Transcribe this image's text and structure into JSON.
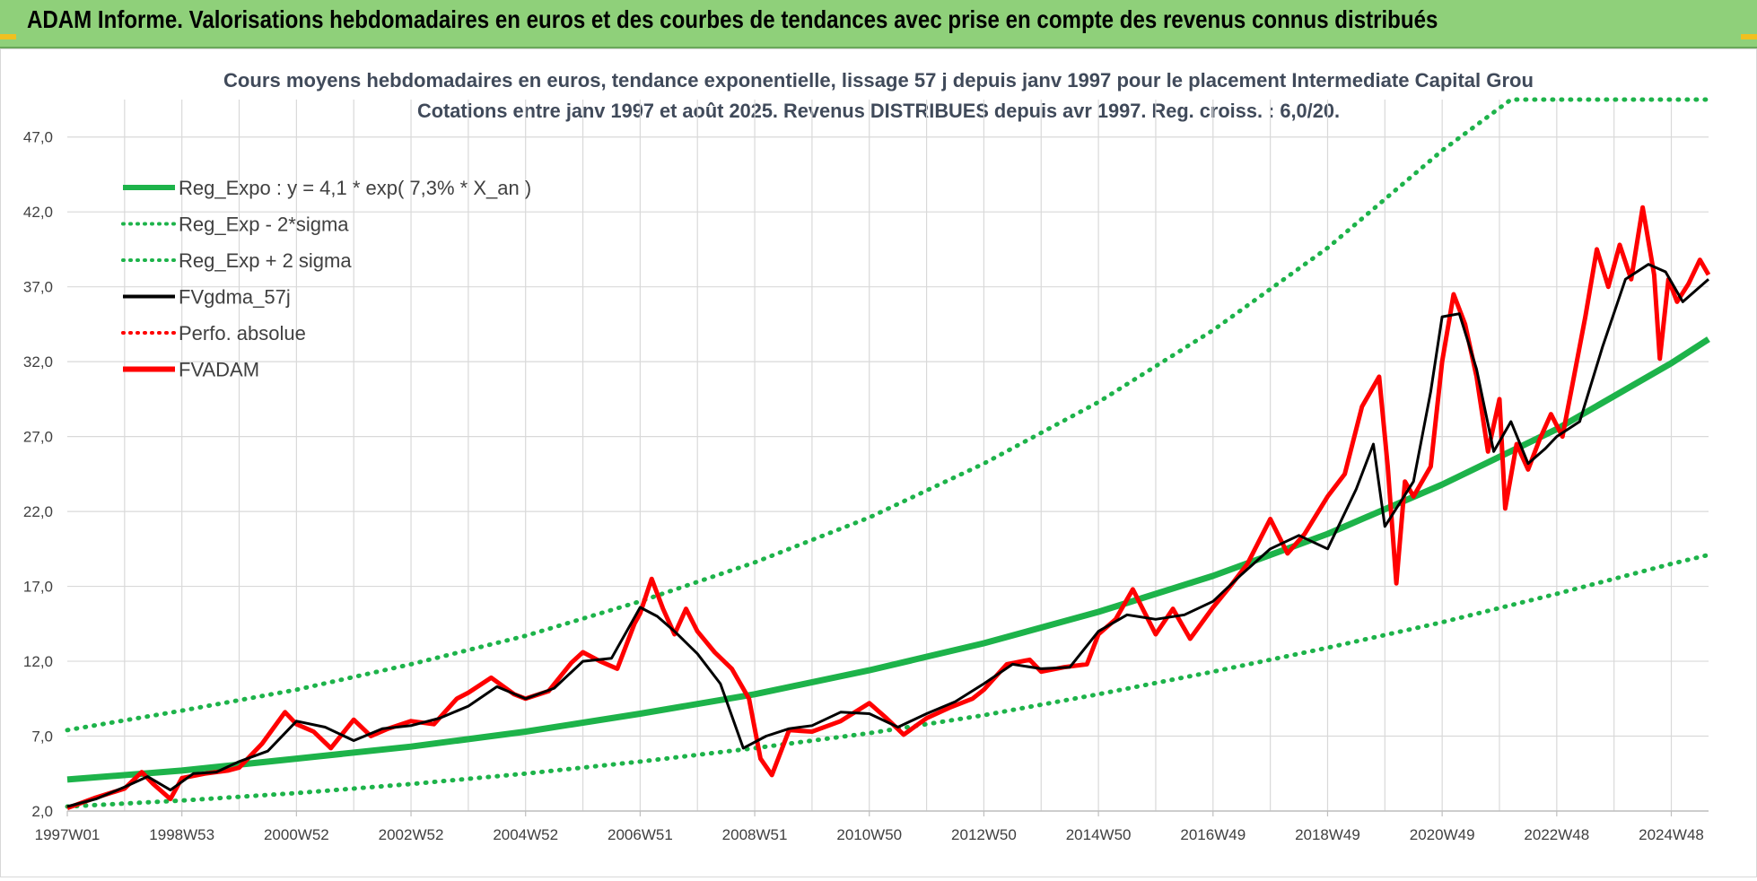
{
  "banner": {
    "title": "ADAM Informe. Valorisations hebdomadaires en euros et des courbes de tendances avec prise en compte des revenus connus distribués"
  },
  "colors": {
    "banner_bg": "#8fd07a",
    "reg_expo": "#1db34a",
    "sigma_bands": "#1db34a",
    "fvgdma": "#000000",
    "fvadam": "#ff0000",
    "perfo_absolue": "#ff0000",
    "grid": "#d9d9d9"
  },
  "chart_data": {
    "type": "line",
    "title": "Cours moyens hebdomadaires en euros, tendance exponentielle, lissage 57 j depuis janv 1997 pour le placement Intermediate Capital Grou",
    "subtitle": "Cotations entre janv 1997 et août 2025. Revenus DISTRIBUES depuis avr 1997. Reg. croiss. : 6,0/20.",
    "xlabel": "",
    "ylabel": "",
    "x_range": [
      1997.0,
      2025.65
    ],
    "ylim": [
      2.0,
      49.5
    ],
    "y_ticks": [
      "2,0",
      "7,0",
      "12,0",
      "17,0",
      "22,0",
      "27,0",
      "32,0",
      "37,0",
      "42,0",
      "47,0"
    ],
    "y_tick_values": [
      2,
      7,
      12,
      17,
      22,
      27,
      32,
      37,
      42,
      47
    ],
    "x_ticks": [
      "1997W01",
      "1998W53",
      "2000W52",
      "2002W52",
      "2004W52",
      "2006W51",
      "2008W51",
      "2010W50",
      "2012W50",
      "2014W50",
      "2016W49",
      "2018W49",
      "2020W49",
      "2022W48",
      "2024W48"
    ],
    "x_tick_values": [
      1997.0,
      1999.0,
      2001.0,
      2003.0,
      2005.0,
      2007.0,
      2009.0,
      2011.0,
      2013.0,
      2015.0,
      2017.0,
      2019.0,
      2021.0,
      2023.0,
      2025.0
    ],
    "grid": true,
    "legend_position": "top-left",
    "legend": [
      {
        "label": "Reg_Expo : y = 4,1 * exp( 7,3% *  X_an )",
        "style": "solid-thick",
        "color": "#1db34a"
      },
      {
        "label": "Reg_Exp - 2*sigma",
        "style": "dotted",
        "color": "#1db34a"
      },
      {
        "label": "Reg_Exp + 2 sigma",
        "style": "dotted",
        "color": "#1db34a"
      },
      {
        "label": "FVgdma_57j",
        "style": "solid-thin",
        "color": "#000000"
      },
      {
        "label": "Perfo. absolue",
        "style": "dotted",
        "color": "#ff0000"
      },
      {
        "label": "FVADAM",
        "style": "solid-thick",
        "color": "#ff0000"
      }
    ],
    "series": [
      {
        "name": "Reg_Expo : y = 4,1 * exp( 7,3% *  X_an )",
        "x": [
          1997.0,
          1999.0,
          2001.0,
          2003.0,
          2005.0,
          2007.0,
          2009.0,
          2011.0,
          2013.0,
          2015.0,
          2017.0,
          2019.0,
          2021.0,
          2023.0,
          2025.0,
          2025.65
        ],
        "y": [
          4.1,
          4.7,
          5.5,
          6.3,
          7.3,
          8.5,
          9.8,
          11.4,
          13.2,
          15.3,
          17.7,
          20.5,
          23.8,
          27.5,
          31.9,
          33.5
        ]
      },
      {
        "name": "Reg_Exp - 2*sigma",
        "x": [
          1997.0,
          1999.0,
          2001.0,
          2003.0,
          2005.0,
          2007.0,
          2009.0,
          2011.0,
          2013.0,
          2015.0,
          2017.0,
          2019.0,
          2021.0,
          2023.0,
          2025.0,
          2025.65
        ],
        "y": [
          2.3,
          2.7,
          3.2,
          3.8,
          4.5,
          5.3,
          6.2,
          7.2,
          8.4,
          9.8,
          11.3,
          12.9,
          14.6,
          16.5,
          18.5,
          19.1
        ]
      },
      {
        "name": "Reg_Exp + 2 sigma",
        "x": [
          1997.0,
          1999.0,
          2001.0,
          2003.0,
          2005.0,
          2007.0,
          2009.0,
          2011.0,
          2013.0,
          2015.0,
          2017.0,
          2019.0,
          2021.0,
          2022.2,
          2022.3,
          2025.65
        ],
        "y": [
          7.4,
          8.7,
          10.1,
          11.8,
          13.7,
          16.0,
          18.6,
          21.6,
          25.2,
          29.3,
          34.1,
          39.6,
          46.1,
          49.5,
          49.5,
          49.5
        ]
      },
      {
        "name": "FVgdma_57j",
        "x": [
          1997.0,
          1997.5,
          1998.0,
          1998.4,
          1998.8,
          1999.2,
          1999.6,
          2000.0,
          2000.5,
          2001.0,
          2001.5,
          2002.0,
          2002.5,
          2003.0,
          2003.5,
          2004.0,
          2004.5,
          2005.0,
          2005.5,
          2006.0,
          2006.5,
          2007.0,
          2007.3,
          2007.6,
          2008.0,
          2008.4,
          2008.8,
          2009.2,
          2009.6,
          2010.0,
          2010.5,
          2011.0,
          2011.5,
          2012.0,
          2012.5,
          2013.0,
          2013.5,
          2014.0,
          2014.5,
          2015.0,
          2015.5,
          2016.0,
          2016.5,
          2017.0,
          2017.5,
          2018.0,
          2018.5,
          2019.0,
          2019.5,
          2019.8,
          2020.0,
          2020.5,
          2020.8,
          2021.0,
          2021.3,
          2021.6,
          2021.9,
          2022.2,
          2022.5,
          2022.8,
          2023.0,
          2023.4,
          2023.8,
          2024.2,
          2024.6,
          2024.9,
          2025.2,
          2025.65
        ],
        "y": [
          2.3,
          2.8,
          3.6,
          4.3,
          3.4,
          4.5,
          4.6,
          5.3,
          6.0,
          8.0,
          7.6,
          6.7,
          7.5,
          7.7,
          8.2,
          9.0,
          10.3,
          9.5,
          10.2,
          12.0,
          12.2,
          15.6,
          15.0,
          14.0,
          12.5,
          10.5,
          6.2,
          7.0,
          7.5,
          7.7,
          8.6,
          8.5,
          7.6,
          8.5,
          9.3,
          10.5,
          11.8,
          11.5,
          11.6,
          14.0,
          15.1,
          14.8,
          15.1,
          16.0,
          17.8,
          19.5,
          20.4,
          19.5,
          23.5,
          26.5,
          21.0,
          24.0,
          30.0,
          35.0,
          35.2,
          31.5,
          26.0,
          28.0,
          25.2,
          26.2,
          27.0,
          28.0,
          33.0,
          37.5,
          38.5,
          38.0,
          36.0,
          37.5
        ]
      },
      {
        "name": "FVADAM",
        "x": [
          1997.0,
          1997.5,
          1998.0,
          1998.3,
          1998.5,
          1998.8,
          1999.0,
          1999.4,
          1999.8,
          2000.0,
          2000.4,
          2000.8,
          2001.0,
          2001.3,
          2001.6,
          2002.0,
          2002.3,
          2002.6,
          2003.0,
          2003.4,
          2003.8,
          2004.0,
          2004.4,
          2004.8,
          2005.0,
          2005.4,
          2005.8,
          2006.0,
          2006.3,
          2006.6,
          2006.9,
          2007.0,
          2007.2,
          2007.4,
          2007.6,
          2007.8,
          2008.0,
          2008.3,
          2008.6,
          2008.9,
          2009.1,
          2009.3,
          2009.6,
          2010.0,
          2010.5,
          2011.0,
          2011.3,
          2011.6,
          2012.0,
          2012.4,
          2012.8,
          2013.0,
          2013.4,
          2013.8,
          2014.0,
          2014.4,
          2014.8,
          2015.0,
          2015.3,
          2015.6,
          2016.0,
          2016.3,
          2016.6,
          2017.0,
          2017.3,
          2017.6,
          2018.0,
          2018.3,
          2018.6,
          2019.0,
          2019.3,
          2019.6,
          2019.9,
          2020.05,
          2020.2,
          2020.35,
          2020.5,
          2020.8,
          2021.0,
          2021.2,
          2021.4,
          2021.6,
          2021.8,
          2022.0,
          2022.1,
          2022.3,
          2022.5,
          2022.7,
          2022.9,
          2023.1,
          2023.3,
          2023.5,
          2023.7,
          2023.9,
          2024.1,
          2024.3,
          2024.5,
          2024.7,
          2024.8,
          2024.95,
          2025.1,
          2025.3,
          2025.5,
          2025.65
        ],
        "y": [
          2.2,
          2.9,
          3.5,
          4.6,
          3.8,
          2.8,
          4.2,
          4.5,
          4.7,
          4.9,
          6.5,
          8.6,
          7.8,
          7.3,
          6.2,
          8.1,
          7.0,
          7.5,
          8.0,
          7.8,
          9.5,
          9.9,
          10.9,
          9.8,
          9.5,
          10.0,
          11.9,
          12.6,
          12.0,
          11.5,
          14.5,
          15.2,
          17.5,
          15.5,
          13.8,
          15.5,
          14.0,
          12.6,
          11.5,
          9.5,
          5.5,
          4.4,
          7.4,
          7.3,
          8.0,
          9.2,
          8.2,
          7.1,
          8.2,
          8.9,
          9.5,
          10.1,
          11.8,
          12.1,
          11.3,
          11.6,
          11.8,
          13.8,
          14.8,
          16.8,
          13.8,
          15.5,
          13.5,
          15.6,
          17.0,
          18.5,
          21.5,
          19.2,
          20.5,
          23.0,
          24.5,
          29.0,
          31.0,
          25.0,
          17.2,
          24.0,
          23.0,
          25.0,
          32.0,
          36.5,
          34.5,
          31.0,
          26.0,
          29.5,
          22.2,
          26.5,
          24.8,
          26.8,
          28.5,
          27.0,
          31.0,
          35.0,
          39.5,
          37.0,
          39.8,
          37.5,
          42.3,
          37.8,
          32.2,
          37.5,
          36.0,
          37.2,
          38.8,
          37.8
        ]
      }
    ]
  }
}
